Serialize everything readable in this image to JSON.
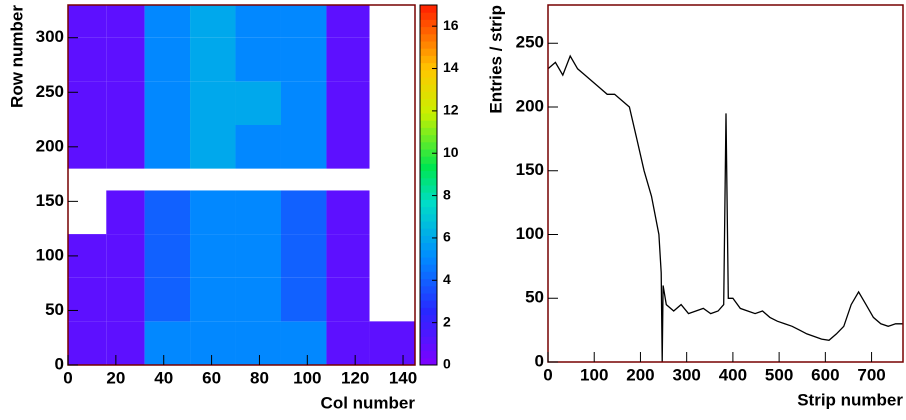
{
  "chart_data": [
    {
      "type": "heatmap",
      "x_title": "Col number",
      "y_title": "Row number",
      "x_bins": [
        0,
        16,
        32,
        51,
        70,
        89,
        108,
        126,
        145
      ],
      "y_bins": [
        0,
        40,
        80,
        120,
        160,
        180,
        220,
        260,
        300,
        330
      ],
      "z": [
        [
          1,
          1,
          5,
          5,
          5,
          5,
          1,
          1
        ],
        [
          1,
          1,
          4,
          5,
          5,
          4,
          1,
          0
        ],
        [
          1,
          1,
          4,
          5,
          5,
          4,
          1,
          0
        ],
        [
          0,
          1,
          4,
          5,
          5,
          4,
          1,
          0
        ],
        [
          0,
          0,
          0,
          0,
          0,
          0,
          0,
          0
        ],
        [
          1,
          1,
          5,
          6,
          5,
          5,
          1,
          0
        ],
        [
          1,
          1,
          5,
          6,
          6,
          5,
          1,
          0
        ],
        [
          1,
          1,
          5,
          6,
          5,
          5,
          1,
          0
        ],
        [
          1,
          1,
          5,
          6,
          5,
          5,
          1,
          0
        ]
      ],
      "xlim": [
        0,
        145
      ],
      "ylim": [
        0,
        330
      ],
      "xticks": [
        0,
        20,
        40,
        60,
        80,
        100,
        120,
        140
      ],
      "yticks": [
        0,
        50,
        100,
        150,
        200,
        250,
        300
      ],
      "zlim": [
        0,
        17
      ],
      "zticks": [
        0,
        2,
        4,
        6,
        8,
        10,
        12,
        14,
        16
      ]
    },
    {
      "type": "line",
      "x_title": "Strip number",
      "y_title": "Entries / strip",
      "color": "#000000",
      "x": [
        0,
        16,
        32,
        48,
        64,
        80,
        96,
        112,
        128,
        144,
        160,
        176,
        192,
        208,
        224,
        240,
        245,
        247,
        249,
        256,
        272,
        288,
        304,
        320,
        336,
        352,
        368,
        380,
        385,
        390,
        400,
        416,
        432,
        448,
        464,
        480,
        496,
        512,
        528,
        544,
        560,
        576,
        592,
        608,
        624,
        640,
        656,
        672,
        688,
        704,
        720,
        736,
        752,
        768
      ],
      "values": [
        230,
        235,
        225,
        240,
        230,
        225,
        220,
        215,
        210,
        210,
        205,
        200,
        175,
        150,
        130,
        100,
        70,
        0,
        60,
        45,
        40,
        45,
        38,
        40,
        42,
        38,
        40,
        45,
        195,
        50,
        50,
        42,
        40,
        38,
        40,
        35,
        32,
        30,
        28,
        25,
        22,
        20,
        18,
        17,
        22,
        28,
        45,
        55,
        45,
        35,
        30,
        28,
        30,
        30
      ],
      "xlim": [
        0,
        768
      ],
      "ylim": [
        0,
        280
      ],
      "xticks": [
        0,
        100,
        200,
        300,
        400,
        500,
        600,
        700
      ],
      "yticks": [
        0,
        50,
        100,
        150,
        200,
        250
      ]
    }
  ]
}
